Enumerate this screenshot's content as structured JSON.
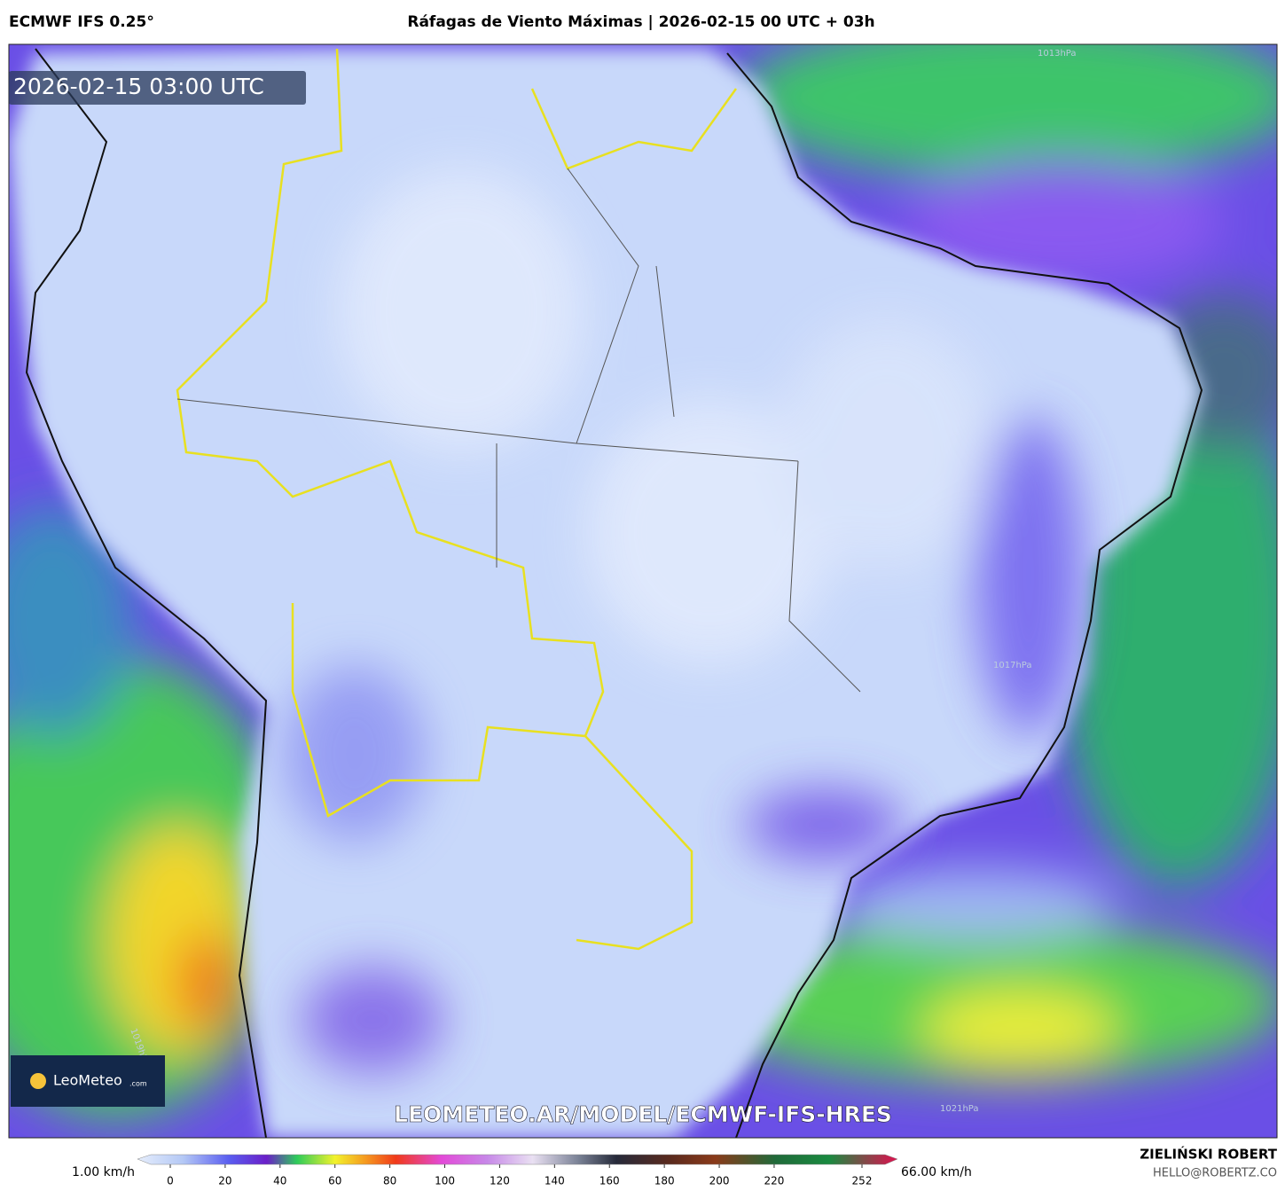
{
  "header": {
    "model": "ECMWF IFS 0.25°",
    "title": "Ráfagas de Viento Máximas | 2026-02-15 00 UTC + 03h"
  },
  "map": {
    "timestamp": "2026-02-15 03:00 UTC",
    "url": "LEOMETEO.AR/MODEL/ECMWF-IFS-HRES",
    "isobars": [
      "1013hPa",
      "1017hPa",
      "1019hPa",
      "1021hPa"
    ]
  },
  "logo": {
    "name": "LeoMeteo",
    "suffix": ".com"
  },
  "colorbar": {
    "min_label": "1.00 km/h",
    "max_label": "66.00 km/h",
    "ticks": [
      0,
      20,
      40,
      60,
      80,
      100,
      120,
      140,
      160,
      180,
      200,
      220,
      252
    ]
  },
  "footer": {
    "author": "ZIELIŃSKI ROBERT",
    "email": "HELLO@ROBERTZ.CO"
  }
}
